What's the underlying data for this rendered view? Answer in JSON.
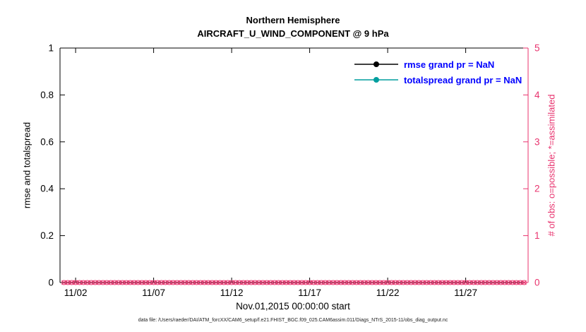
{
  "header": {
    "title_line1": "Northern Hemisphere",
    "title_line2": "AIRCRAFT_U_WIND_COMPONENT @ 9 hPa"
  },
  "footer": {
    "data_file": "data file: /Users/raeder/DAI/ATM_forcXX/CAM6_setup/f.e21.FHIST_BGC.f09_025.CAM6assim.011/Diags_NTrS_2015-11/obs_diag_output.nc"
  },
  "chart_data": {
    "type": "line",
    "title": "Northern Hemisphere",
    "subtitle": "AIRCRAFT_U_WIND_COMPONENT @ 9 hPa",
    "xlabel": "Nov.01,2015 00:00:00 start",
    "x_axis": {
      "lim_days": [
        0,
        30
      ],
      "ticks_days": [
        1,
        6,
        11,
        16,
        21,
        26
      ],
      "tick_labels": [
        "11/02",
        "11/07",
        "11/12",
        "11/17",
        "11/22",
        "11/27"
      ],
      "color": "#000000"
    },
    "left_axis": {
      "label": "rmse and totalspread",
      "lim": [
        0,
        1
      ],
      "ticks": [
        0,
        0.2,
        0.4,
        0.6,
        0.8,
        1
      ],
      "tick_labels": [
        "0",
        "0.2",
        "0.4",
        "0.6",
        "0.8",
        "1"
      ],
      "color": "#000000"
    },
    "right_axis": {
      "label": "# of obs: o=possible; *=assimilated",
      "lim": [
        0,
        5
      ],
      "ticks": [
        0,
        1,
        2,
        3,
        4,
        5
      ],
      "tick_labels": [
        "0",
        "1",
        "2",
        "3",
        "4",
        "5"
      ],
      "color": "#e8336e"
    },
    "grid": false,
    "series": [
      {
        "name": "rmse",
        "legend_label": "rmse grand pr = NaN",
        "axis": "left",
        "color": "#000000",
        "marker": "filled-circle",
        "grand_value": "NaN",
        "points_plotted": 0
      },
      {
        "name": "totalspread",
        "legend_label": "totalspread grand pr = NaN",
        "axis": "left",
        "color": "#009e9e",
        "marker": "filled-circle",
        "grand_value": "NaN",
        "points_plotted": 0
      },
      {
        "name": "possible_obs",
        "axis": "right",
        "color": "#e8336e",
        "marker": "o",
        "x_days": {
          "start": 0.25,
          "end": 29.75,
          "step_days": 0.25,
          "count": 119
        },
        "constant_value": 0
      },
      {
        "name": "assimilated_obs",
        "axis": "right",
        "color": "#e8336e",
        "marker": "x",
        "x_days": {
          "start": 0.25,
          "end": 29.75,
          "step_days": 0.25,
          "count": 119
        },
        "constant_value": 0
      }
    ],
    "legend": {
      "position": "upper-right",
      "text_color": "#0000ff",
      "entries": [
        {
          "label": "rmse grand pr = NaN",
          "line_color": "#000000",
          "marker": "filled-circle"
        },
        {
          "label": "totalspread grand pr = NaN",
          "line_color": "#009e9e",
          "marker": "filled-circle"
        }
      ]
    }
  }
}
